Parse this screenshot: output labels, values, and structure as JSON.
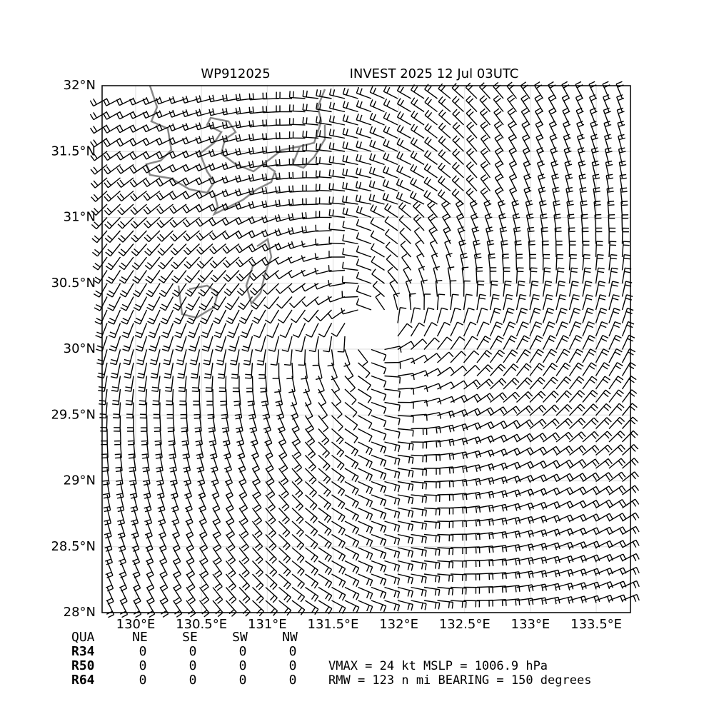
{
  "map": {
    "title_left": "WP912025",
    "title_right": "INVEST 2025 12 Jul 03UTC",
    "xlim": [
      129.745,
      133.76
    ],
    "ylim": [
      28,
      32
    ],
    "xticks": [
      {
        "value": 130,
        "label": "130°E"
      },
      {
        "value": 130.5,
        "label": "130.5°E"
      },
      {
        "value": 131,
        "label": "131°E"
      },
      {
        "value": 131.5,
        "label": "131.5°E"
      },
      {
        "value": 132,
        "label": "132°E"
      },
      {
        "value": 132.5,
        "label": "132.5°E"
      },
      {
        "value": 133,
        "label": "133°E"
      },
      {
        "value": 133.5,
        "label": "133.5°E"
      }
    ],
    "yticks": [
      {
        "value": 28,
        "label": "28°N"
      },
      {
        "value": 28.5,
        "label": "28.5°N"
      },
      {
        "value": 29,
        "label": "29°N"
      },
      {
        "value": 29.5,
        "label": "29.5°N"
      },
      {
        "value": 30,
        "label": "30°N"
      },
      {
        "value": 30.5,
        "label": "30.5°N"
      },
      {
        "value": 31,
        "label": "31°N"
      },
      {
        "value": 31.5,
        "label": "31.5°N"
      },
      {
        "value": 32,
        "label": "32°N"
      }
    ]
  },
  "table": {
    "header": [
      "QUA",
      "NE",
      "SE",
      "SW",
      "NW"
    ],
    "rows": [
      [
        "R34",
        0,
        0,
        0,
        0
      ],
      [
        "R50",
        0,
        0,
        0,
        0
      ],
      [
        "R64",
        0,
        0,
        0,
        0
      ]
    ]
  },
  "info": [
    "VMAX =  24 kt MSLP = 1006.9 hPa",
    "RMW = 123 n mi BEARING = 150 degrees"
  ]
}
